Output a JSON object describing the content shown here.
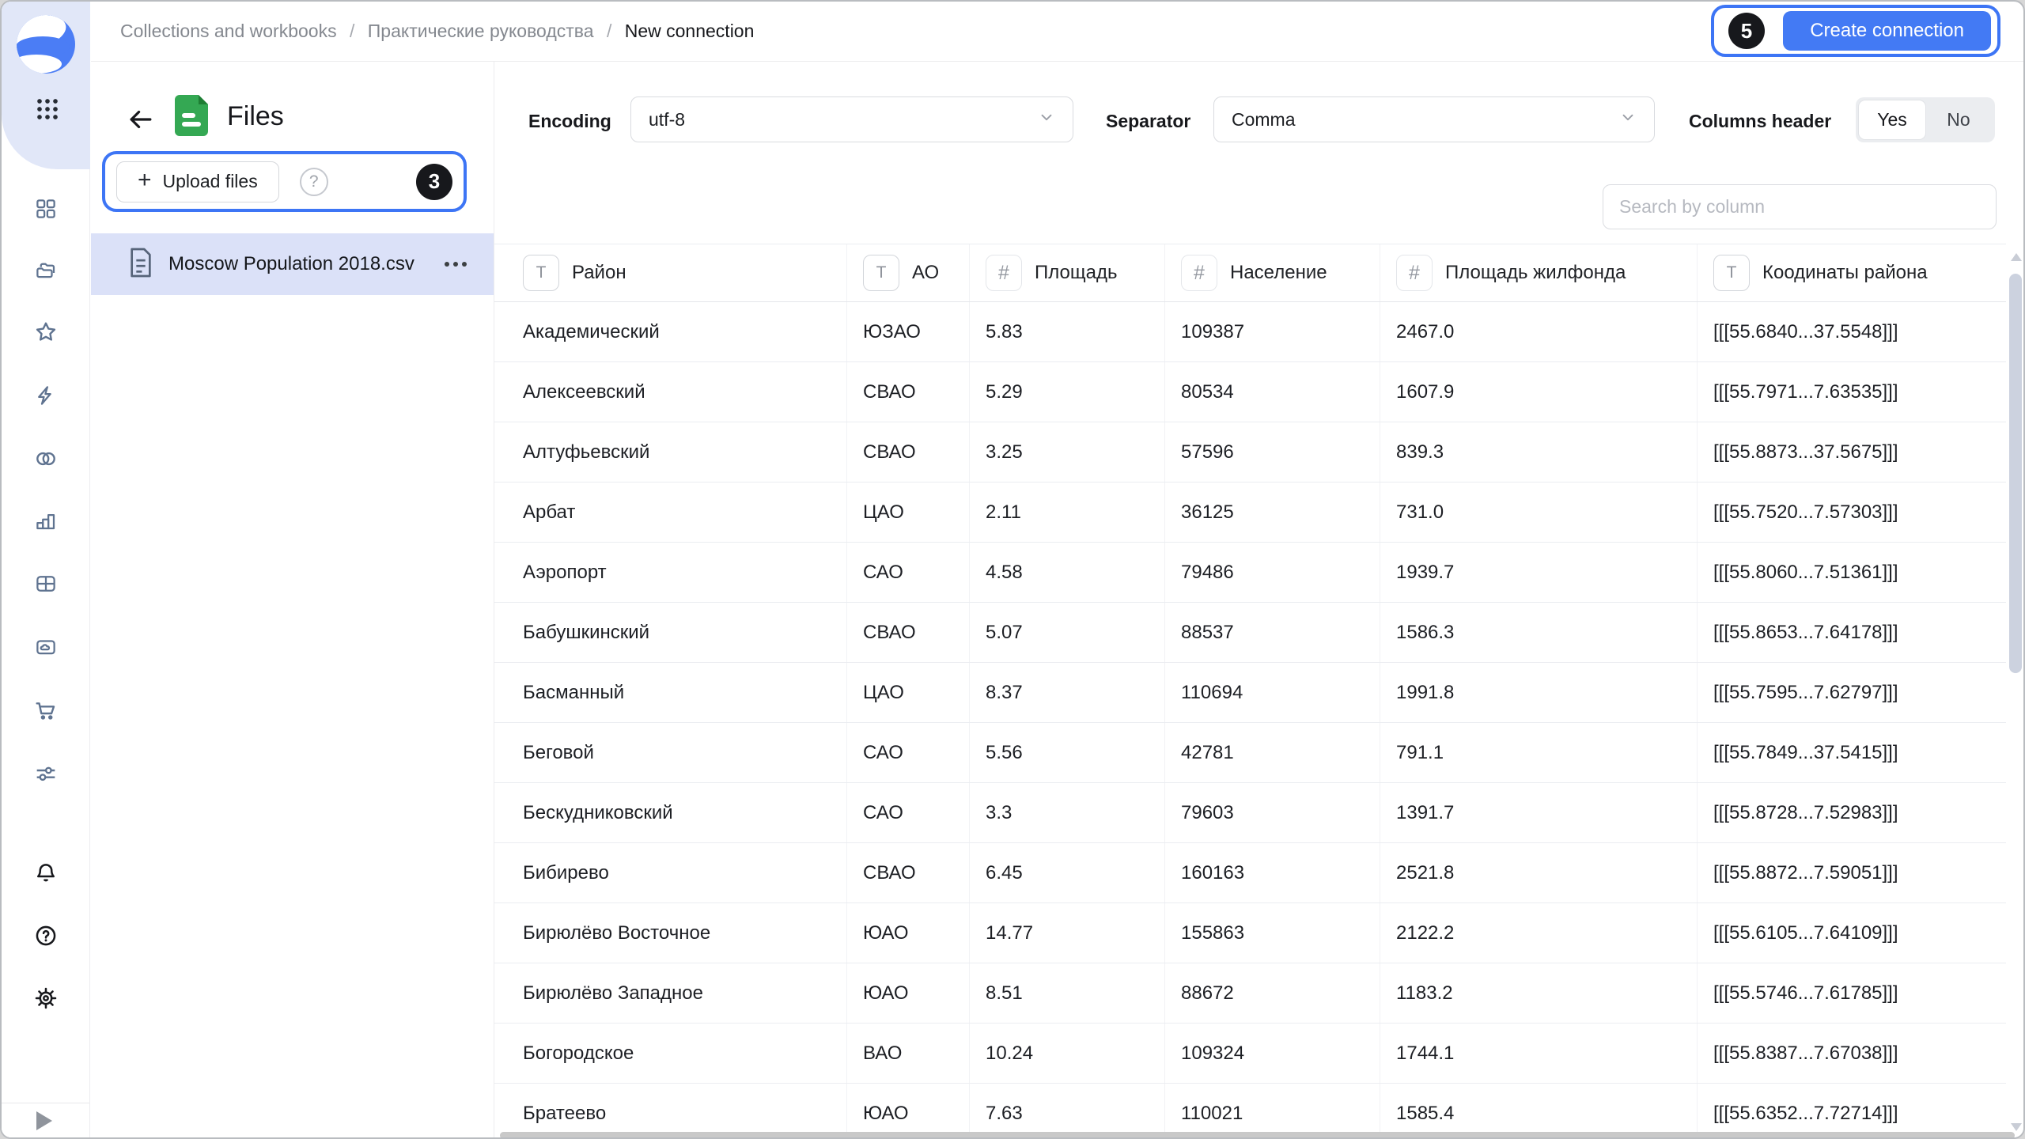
{
  "breadcrumb": {
    "items": [
      "Collections and workbooks",
      "Практические руководства",
      "New connection"
    ],
    "separator": "/"
  },
  "topbar": {
    "annotation_badge": "5",
    "create_button_label": "Create connection"
  },
  "files_panel": {
    "title": "Files",
    "upload_button_label": "Upload files",
    "plus_glyph": "+",
    "help_glyph": "?",
    "annotation_badge": "3",
    "file": {
      "name": "Moscow Population 2018.csv"
    }
  },
  "settings": {
    "encoding_label": "Encoding",
    "encoding_value": "utf-8",
    "separator_label": "Separator",
    "separator_value": "Comma",
    "columns_header_label": "Columns header",
    "columns_header_options": [
      "Yes",
      "No"
    ],
    "columns_header_selected": "Yes"
  },
  "search": {
    "placeholder": "Search by column"
  },
  "table": {
    "columns": [
      {
        "label": "Район",
        "type": "text"
      },
      {
        "label": "АО",
        "type": "text"
      },
      {
        "label": "Площадь",
        "type": "number"
      },
      {
        "label": "Население",
        "type": "number"
      },
      {
        "label": "Площадь жилфонда",
        "type": "number"
      },
      {
        "label": "Коодинаты района",
        "type": "text"
      }
    ],
    "type_icon_glyphs": {
      "text": "T",
      "number": "#"
    },
    "rows": [
      [
        "Академический",
        "ЮЗАО",
        "5.83",
        "109387",
        "2467.0",
        "[[[55.6840...37.5548]]]"
      ],
      [
        "Алексеевский",
        "СВАО",
        "5.29",
        "80534",
        "1607.9",
        "[[[55.7971...7.63535]]]"
      ],
      [
        "Алтуфьевский",
        "СВАО",
        "3.25",
        "57596",
        "839.3",
        "[[[55.8873...37.5675]]]"
      ],
      [
        "Арбат",
        "ЦАО",
        "2.11",
        "36125",
        "731.0",
        "[[[55.7520...7.57303]]]"
      ],
      [
        "Аэропорт",
        "САО",
        "4.58",
        "79486",
        "1939.7",
        "[[[55.8060...7.51361]]]"
      ],
      [
        "Бабушкинский",
        "СВАО",
        "5.07",
        "88537",
        "1586.3",
        "[[[55.8653...7.64178]]]"
      ],
      [
        "Басманный",
        "ЦАО",
        "8.37",
        "110694",
        "1991.8",
        "[[[55.7595...7.62797]]]"
      ],
      [
        "Беговой",
        "САО",
        "5.56",
        "42781",
        "791.1",
        "[[[55.7849...37.5415]]]"
      ],
      [
        "Бескудниковский",
        "САО",
        "3.3",
        "79603",
        "1391.7",
        "[[[55.8728...7.52983]]]"
      ],
      [
        "Бибирево",
        "СВАО",
        "6.45",
        "160163",
        "2521.8",
        "[[[55.8872...7.59051]]]"
      ],
      [
        "Бирюлёво Восточное",
        "ЮАО",
        "14.77",
        "155863",
        "2122.2",
        "[[[55.6105...7.64109]]]"
      ],
      [
        "Бирюлёво Западное",
        "ЮАО",
        "8.51",
        "88672",
        "1183.2",
        "[[[55.5746...7.61785]]]"
      ],
      [
        "Богородское",
        "ВАО",
        "10.24",
        "109324",
        "1744.1",
        "[[[55.8387...7.67038]]]"
      ],
      [
        "Братеево",
        "ЮАО",
        "7.63",
        "110021",
        "1585.4",
        "[[[55.6352...7.72714]]]"
      ]
    ]
  },
  "sidebar": {
    "icons": [
      "apps-grid",
      "dashboard",
      "collections",
      "favorites",
      "lightning",
      "linked-circles",
      "bar-chart",
      "table-grid",
      "media-folder",
      "cart",
      "sliders",
      "bell",
      "help",
      "gear",
      "expand"
    ]
  },
  "colors": {
    "accent_blue": "#3d75f5",
    "button_blue": "#437af4",
    "rail_blob": "#e1e7f8",
    "selected_file_row": "#dbe1f8",
    "doc_icon_green": "#34a853",
    "badge_black": "#17181c"
  }
}
